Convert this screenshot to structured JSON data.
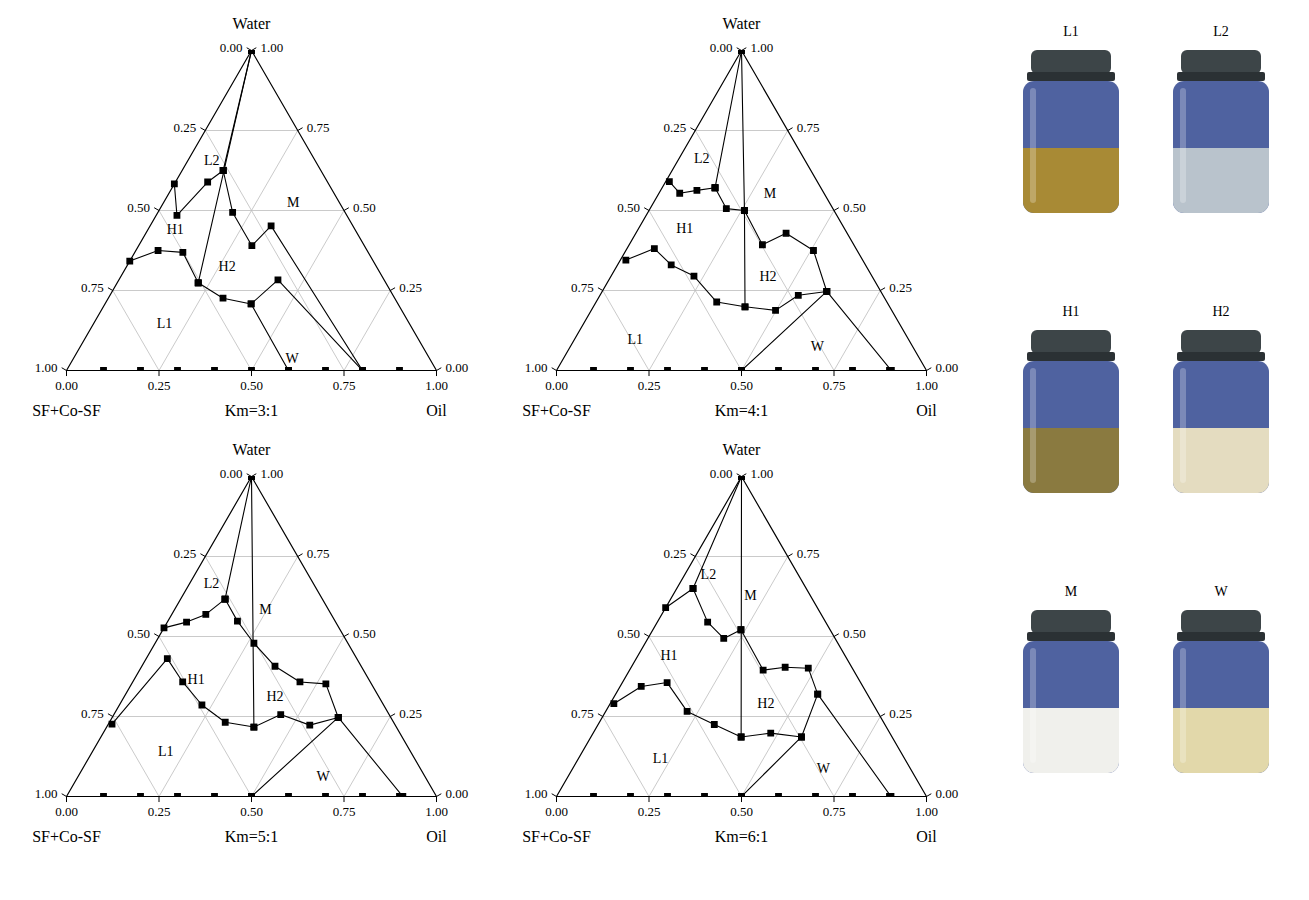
{
  "chart_data": [
    {
      "type": "ternary",
      "title": "Km=3:1",
      "vertices": {
        "top": "Water",
        "left": "SF+Co-SF",
        "right": "Oil"
      },
      "lim": [
        0,
        1
      ],
      "ticks": [
        {
          "value": 0,
          "label": "0.00"
        },
        {
          "value": 0.25,
          "label": "0.25"
        },
        {
          "value": 0.5,
          "label": "0.50"
        },
        {
          "value": 0.75,
          "label": "0.75"
        },
        {
          "value": 1,
          "label": "1.00"
        }
      ],
      "grid": true,
      "marker": "square",
      "color": "#000000",
      "start_points": [
        [
          0,
          0.1
        ],
        [
          0,
          0.2
        ],
        [
          0,
          0.3
        ],
        [
          0,
          0.4
        ],
        [
          0,
          0.5
        ],
        [
          0,
          0.6
        ],
        [
          0,
          0.7
        ],
        [
          0,
          0.8
        ],
        [
          0,
          0.9
        ]
      ],
      "boundaries": [
        [
          [
            1,
            0
          ],
          [
            0.625,
            0.111
          ]
        ],
        [
          [
            1,
            0
          ],
          [
            0.274,
            0.219
          ]
        ],
        [
          [
            0.583,
            0
          ],
          [
            0.485,
            0.056
          ],
          [
            0.589,
            0.087
          ],
          [
            0.625,
            0.111
          ]
        ],
        [
          [
            0.342,
            0
          ],
          [
            0.375,
            0.06
          ],
          [
            0.369,
            0.13
          ],
          [
            0.274,
            0.219
          ]
        ],
        [
          [
            0.625,
            0.111
          ],
          [
            0.494,
            0.202
          ],
          [
            0.39,
            0.306
          ],
          [
            0.452,
            0.327
          ],
          [
            0,
            0.8
          ]
        ],
        [
          [
            0.274,
            0.219
          ],
          [
            0.226,
            0.31
          ],
          [
            0.208,
            0.395
          ],
          [
            0.283,
            0.43
          ],
          [
            0,
            0.8
          ]
        ],
        [
          [
            0.208,
            0.395
          ],
          [
            0,
            0.6
          ]
        ]
      ],
      "regions": [
        {
          "label": "L2",
          "water": 0.655,
          "oil": 0.065
        },
        {
          "label": "M",
          "water": 0.524,
          "oil": 0.351
        },
        {
          "label": "H1",
          "water": 0.44,
          "oil": 0.074
        },
        {
          "label": "H2",
          "water": 0.324,
          "oil": 0.272
        },
        {
          "label": "L1",
          "water": 0.146,
          "oil": 0.192
        },
        {
          "label": "W",
          "water": 0.036,
          "oil": 0.592
        }
      ]
    },
    {
      "type": "ternary",
      "title": "Km=4:1",
      "vertices": {
        "top": "Water",
        "left": "SF+Co-SF",
        "right": "Oil"
      },
      "lim": [
        0,
        1
      ],
      "ticks": [
        {
          "value": 0,
          "label": "0.00"
        },
        {
          "value": 0.25,
          "label": "0.25"
        },
        {
          "value": 0.5,
          "label": "0.50"
        },
        {
          "value": 0.75,
          "label": "0.75"
        },
        {
          "value": 1,
          "label": "1.00"
        }
      ],
      "grid": true,
      "marker": "square",
      "color": "#000000",
      "start_points": [
        [
          0,
          0.1
        ],
        [
          0,
          0.2
        ],
        [
          0,
          0.3
        ],
        [
          0,
          0.4
        ],
        [
          0,
          0.5
        ],
        [
          0,
          0.6
        ],
        [
          0,
          0.7
        ],
        [
          0,
          0.8
        ],
        [
          0,
          0.9
        ]
      ],
      "boundaries": [
        [
          [
            1,
            0
          ],
          [
            0.571,
            0.143
          ]
        ],
        [
          [
            1,
            0
          ],
          [
            0.5,
            0.258
          ],
          [
            0.199,
            0.41
          ]
        ],
        [
          [
            0.59,
            0.01
          ],
          [
            0.554,
            0.056
          ],
          [
            0.563,
            0.098
          ],
          [
            0.571,
            0.143
          ]
        ],
        [
          [
            0.571,
            0.143
          ],
          [
            0.506,
            0.206
          ],
          [
            0.5,
            0.258
          ],
          [
            0.393,
            0.36
          ],
          [
            0.429,
            0.406
          ],
          [
            0.375,
            0.507
          ],
          [
            0.247,
            0.607
          ],
          [
            0,
            0.905
          ]
        ],
        [
          [
            0.345,
            0.015
          ],
          [
            0.381,
            0.074
          ],
          [
            0.33,
            0.145
          ],
          [
            0.295,
            0.224
          ],
          [
            0.214,
            0.326
          ],
          [
            0.199,
            0.41
          ],
          [
            0.188,
            0.498
          ],
          [
            0.235,
            0.536
          ],
          [
            0.247,
            0.607
          ]
        ],
        [
          [
            0,
            0.5
          ],
          [
            0.247,
            0.607
          ]
        ]
      ],
      "regions": [
        {
          "label": "L2",
          "water": 0.661,
          "oil": 0.062
        },
        {
          "label": "M",
          "water": 0.554,
          "oil": 0.3
        },
        {
          "label": "H1",
          "water": 0.443,
          "oil": 0.125
        },
        {
          "label": "H2",
          "water": 0.295,
          "oil": 0.424
        },
        {
          "label": "L1",
          "water": 0.098,
          "oil": 0.164
        },
        {
          "label": "W",
          "water": 0.074,
          "oil": 0.668
        }
      ]
    },
    {
      "type": "ternary",
      "title": "Km=5:1",
      "vertices": {
        "top": "Water",
        "left": "SF+Co-SF",
        "right": "Oil"
      },
      "lim": [
        0,
        1
      ],
      "ticks": [
        {
          "value": 0,
          "label": "0.00"
        },
        {
          "value": 0.25,
          "label": "0.25"
        },
        {
          "value": 0.5,
          "label": "0.50"
        },
        {
          "value": 0.75,
          "label": "0.75"
        },
        {
          "value": 1,
          "label": "1.00"
        }
      ],
      "grid": true,
      "marker": "square",
      "color": "#000000",
      "start_points": [
        [
          0,
          0.1
        ],
        [
          0,
          0.2
        ],
        [
          0,
          0.3
        ],
        [
          0,
          0.4
        ],
        [
          0,
          0.5
        ],
        [
          0,
          0.6
        ],
        [
          0,
          0.7
        ],
        [
          0,
          0.8
        ],
        [
          0,
          0.9
        ]
      ],
      "boundaries": [
        [
          [
            1,
            0
          ],
          [
            0.617,
            0.12
          ]
        ],
        [
          [
            1,
            0
          ],
          [
            0.217,
            0.398
          ]
        ],
        [
          [
            0.527,
            0
          ],
          [
            0.545,
            0.052
          ],
          [
            0.569,
            0.092
          ],
          [
            0.617,
            0.12
          ]
        ],
        [
          [
            0.617,
            0.12
          ],
          [
            0.548,
            0.188
          ],
          [
            0.479,
            0.267
          ],
          [
            0.407,
            0.36
          ],
          [
            0.358,
            0.452
          ],
          [
            0.352,
            0.525
          ],
          [
            0.247,
            0.611
          ],
          [
            0,
            0.909
          ]
        ],
        [
          [
            0.226,
            0.01
          ],
          [
            0.431,
            0.057
          ],
          [
            0.358,
            0.135
          ],
          [
            0.286,
            0.223
          ],
          [
            0.232,
            0.313
          ],
          [
            0.217,
            0.398
          ],
          [
            0.256,
            0.451
          ],
          [
            0.223,
            0.546
          ],
          [
            0.247,
            0.611
          ]
        ],
        [
          [
            0,
            0.5
          ],
          [
            0.247,
            0.611
          ]
        ]
      ],
      "regions": [
        {
          "label": "L2",
          "water": 0.666,
          "oil": 0.059
        },
        {
          "label": "M",
          "water": 0.584,
          "oil": 0.246
        },
        {
          "label": "H1",
          "water": 0.367,
          "oil": 0.167
        },
        {
          "label": "H2",
          "water": 0.313,
          "oil": 0.407
        },
        {
          "label": "L1",
          "water": 0.142,
          "oil": 0.197
        },
        {
          "label": "W",
          "water": 0.063,
          "oil": 0.662
        }
      ]
    },
    {
      "type": "ternary",
      "title": "Km=6:1",
      "vertices": {
        "top": "Water",
        "left": "SF+Co-SF",
        "right": "Oil"
      },
      "lim": [
        0,
        1
      ],
      "ticks": [
        {
          "value": 0,
          "label": "0.00"
        },
        {
          "value": 0.25,
          "label": "0.25"
        },
        {
          "value": 0.5,
          "label": "0.50"
        },
        {
          "value": 0.75,
          "label": "0.75"
        },
        {
          "value": 1,
          "label": "1.00"
        }
      ],
      "grid": true,
      "marker": "square",
      "color": "#000000",
      "start_points": [
        [
          0,
          0.1
        ],
        [
          0,
          0.2
        ],
        [
          0,
          0.3
        ],
        [
          0,
          0.4
        ],
        [
          0,
          0.5
        ],
        [
          0,
          0.6
        ],
        [
          0,
          0.7
        ],
        [
          0,
          0.8
        ],
        [
          0,
          0.9
        ]
      ],
      "boundaries": [
        [
          [
            1,
            0
          ],
          [
            0.65,
            0.044
          ]
        ],
        [
          [
            1,
            0
          ],
          [
            0.186,
            0.406
          ]
        ],
        [
          [
            0.59,
            0
          ],
          [
            0.65,
            0.044
          ],
          [
            0.545,
            0.136
          ],
          [
            0.494,
            0.205
          ],
          [
            0.521,
            0.238
          ]
        ],
        [
          [
            0.521,
            0.238
          ],
          [
            0.395,
            0.361
          ],
          [
            0.404,
            0.416
          ],
          [
            0.401,
            0.48
          ],
          [
            0.32,
            0.546
          ],
          [
            0,
            0.904
          ]
        ],
        [
          [
            0.29,
            0.01
          ],
          [
            0.344,
            0.057
          ],
          [
            0.356,
            0.121
          ],
          [
            0.266,
            0.22
          ],
          [
            0.225,
            0.314
          ],
          [
            0.186,
            0.406
          ],
          [
            0.198,
            0.48
          ],
          [
            0.186,
            0.569
          ],
          [
            0.32,
            0.546
          ]
        ],
        [
          [
            0,
            0.5
          ],
          [
            0.186,
            0.569
          ]
        ]
      ],
      "regions": [
        {
          "label": "L2",
          "water": 0.695,
          "oil": 0.063
        },
        {
          "label": "M",
          "water": 0.629,
          "oil": 0.21
        },
        {
          "label": "H1",
          "water": 0.44,
          "oil": 0.084
        },
        {
          "label": "H2",
          "water": 0.29,
          "oil": 0.421
        },
        {
          "label": "L1",
          "water": 0.12,
          "oil": 0.221
        },
        {
          "label": "W",
          "water": 0.087,
          "oil": 0.678
        }
      ]
    }
  ],
  "photos": [
    {
      "label": "L1",
      "color": "#a88a35"
    },
    {
      "label": "L2",
      "color": "#b9c3cc"
    },
    {
      "label": "H1",
      "color": "#8a7a40"
    },
    {
      "label": "H2",
      "color": "#e4dcc0"
    },
    {
      "label": "M",
      "color": "#f0f0ec"
    },
    {
      "label": "W",
      "color": "#e2d8aa"
    }
  ]
}
